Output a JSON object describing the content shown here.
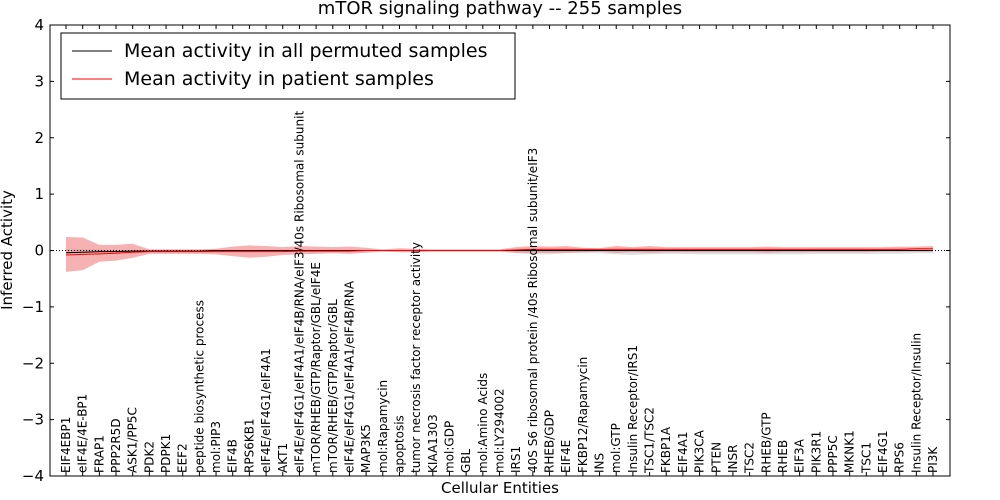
{
  "chart_data": {
    "type": "line",
    "title": "mTOR signaling pathway -- 255 samples",
    "xlabel": "Cellular Entities",
    "ylabel": "Inferred Activity",
    "ylim": [
      -4,
      4
    ],
    "yticks": [
      "−4",
      "−3",
      "−2",
      "−1",
      "0",
      "1",
      "2",
      "3",
      "4"
    ],
    "grid": false,
    "legend_position": "top-left",
    "categories": [
      "EIF4EBP1",
      "eIF4E/4E-BP1",
      "FRAP1",
      "PPP2R5D",
      "ASK1/PP5C",
      "PDK2",
      "PDPK1",
      "EEF2",
      "peptide biosynthetic process",
      "mol:PIP3",
      "EIF4B",
      "RPS6KB1",
      "eIF4E/eIF4G1/eIF4A1",
      "AKT1",
      "eIF4E/eIF4G1/eIF4A1/eIF4B/RNA/eIF3/40s Ribosomal subunit",
      "mTOR/RHEB/GTP/Raptor/GBL/eIF4E",
      "mTOR/RHEB/GTP/Raptor/GBL",
      "eIF4E/eIF4G1/eIF4A1/eIF4B/RNA",
      "MAP3K5",
      "mol:Rapamycin",
      "apoptosis",
      "tumor necrosis factor receptor activity",
      "KIAA1303",
      "mol:GDP",
      "GBL",
      "mol:Amino Acids",
      "mol:LY294002",
      "IRS1",
      "40S S6 ribosomal protein /40s Ribosomal subunit/eIF3",
      "RHEB/GDP",
      "EIF4E",
      "FKBP12/Rapamycin",
      "INS",
      "mol:GTP",
      "Insulin Receptor/IRS1",
      "TSC1/TSC2",
      "FKBP1A",
      "EIF4A1",
      "PIK3CA",
      "PTEN",
      "INSR",
      "TSC2",
      "RHEB/GTP",
      "RHEB",
      "EIF3A",
      "PIK3R1",
      "PPP5C",
      "MKNK1",
      "TSC1",
      "EIF4G1",
      "RPS6",
      "Insulin Receptor/Insulin",
      "PI3K"
    ],
    "series": [
      {
        "name": "Mean activity in all permuted samples",
        "color": "#000000",
        "values": [
          -0.04,
          -0.03,
          -0.02,
          -0.02,
          -0.01,
          -0.01,
          -0.01,
          -0.01,
          -0.01,
          0,
          0,
          0,
          0,
          0,
          0,
          0,
          0,
          0,
          0,
          0,
          0,
          0,
          0,
          0,
          0,
          0,
          0,
          0,
          0,
          0,
          0,
          0,
          0,
          0,
          0,
          0,
          0,
          0,
          0,
          0,
          0,
          0,
          0,
          0,
          0,
          0,
          0,
          0,
          0,
          0,
          0,
          0,
          0
        ],
        "band_upper": [
          0.02,
          0.02,
          0.02,
          0.01,
          0.01,
          0.01,
          0.01,
          0.01,
          0.01,
          0.01,
          0.01,
          0.01,
          0.01,
          0.01,
          0.01,
          0.01,
          0.01,
          0.01,
          0.01,
          0.01,
          0.01,
          0.01,
          0.01,
          0.01,
          0.01,
          0.01,
          0.01,
          0.02,
          0.03,
          0.03,
          0.02,
          0.02,
          0.02,
          0.03,
          0.03,
          0.03,
          0.02,
          0.02,
          0.02,
          0.02,
          0.02,
          0.02,
          0.02,
          0.02,
          0.02,
          0.02,
          0.02,
          0.02,
          0.02,
          0.02,
          0.02,
          0.02,
          0.02
        ],
        "band_lower": [
          -0.06,
          -0.05,
          -0.05,
          -0.04,
          -0.03,
          -0.03,
          -0.02,
          -0.02,
          -0.02,
          -0.02,
          -0.02,
          -0.02,
          -0.02,
          -0.02,
          -0.02,
          -0.02,
          -0.02,
          -0.02,
          -0.01,
          -0.01,
          -0.01,
          -0.01,
          -0.01,
          -0.01,
          -0.01,
          -0.01,
          -0.01,
          -0.05,
          -0.07,
          -0.07,
          -0.05,
          -0.05,
          -0.05,
          -0.07,
          -0.08,
          -0.07,
          -0.06,
          -0.06,
          -0.07,
          -0.07,
          -0.07,
          -0.07,
          -0.07,
          -0.07,
          -0.07,
          -0.06,
          -0.06,
          -0.06,
          -0.06,
          -0.06,
          -0.06,
          -0.05,
          -0.05
        ]
      },
      {
        "name": "Mean activity in patient samples",
        "color": "#ff0000",
        "values": [
          -0.08,
          -0.07,
          -0.06,
          -0.05,
          -0.03,
          -0.02,
          -0.02,
          -0.02,
          -0.02,
          -0.02,
          -0.02,
          -0.02,
          -0.02,
          -0.02,
          -0.01,
          -0.01,
          -0.01,
          -0.01,
          0,
          0,
          0,
          0,
          0,
          0,
          0,
          0,
          0,
          0.01,
          0.02,
          0.02,
          0.02,
          0.02,
          0.02,
          0.02,
          0.02,
          0.02,
          0.02,
          0.02,
          0.02,
          0.02,
          0.02,
          0.02,
          0.02,
          0.02,
          0.02,
          0.02,
          0.02,
          0.02,
          0.02,
          0.02,
          0.02,
          0.03,
          0.03
        ],
        "band_upper": [
          0.24,
          0.23,
          0.1,
          0.1,
          0.12,
          0.02,
          0.02,
          0.02,
          0.02,
          0.03,
          0.07,
          0.09,
          0.08,
          0.06,
          0.08,
          0.07,
          0.06,
          0.07,
          0.05,
          0.02,
          0.04,
          0.03,
          0.02,
          0.02,
          0.02,
          0.02,
          0.02,
          0.06,
          0.08,
          0.07,
          0.08,
          0.05,
          0.04,
          0.08,
          0.06,
          0.08,
          0.06,
          0.06,
          0.06,
          0.06,
          0.06,
          0.06,
          0.07,
          0.06,
          0.06,
          0.06,
          0.06,
          0.06,
          0.06,
          0.06,
          0.07,
          0.07,
          0.08
        ],
        "band_lower": [
          -0.38,
          -0.35,
          -0.2,
          -0.18,
          -0.13,
          -0.06,
          -0.06,
          -0.06,
          -0.06,
          -0.07,
          -0.1,
          -0.13,
          -0.11,
          -0.08,
          -0.07,
          -0.06,
          -0.05,
          -0.06,
          -0.04,
          -0.02,
          -0.03,
          -0.03,
          -0.02,
          -0.02,
          -0.02,
          -0.02,
          -0.02,
          -0.04,
          -0.04,
          -0.04,
          -0.04,
          -0.03,
          -0.02,
          -0.04,
          -0.03,
          -0.04,
          -0.03,
          -0.03,
          -0.03,
          -0.03,
          -0.03,
          -0.03,
          -0.04,
          -0.03,
          -0.03,
          -0.03,
          -0.03,
          -0.03,
          -0.03,
          -0.02,
          -0.02,
          -0.02,
          -0.02
        ]
      }
    ]
  }
}
